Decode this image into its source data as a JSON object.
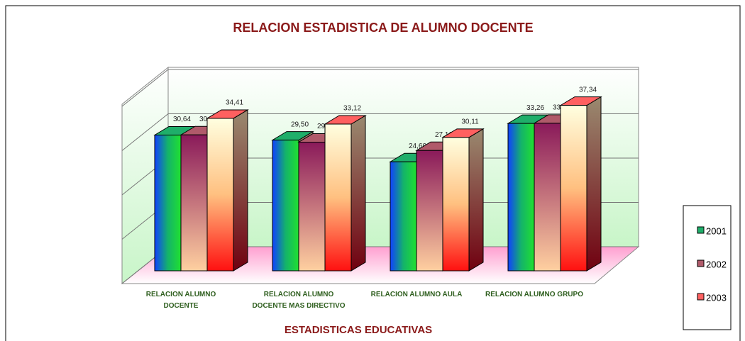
{
  "chart_data": {
    "type": "bar3d",
    "title": "RELACION ESTADISTICA DE ALUMNO DOCENTE",
    "x_label": "ESTADISTICAS EDUCATIVAS",
    "categories": [
      "RELACION ALUMNO DOCENTE",
      "RELACION ALUMNO DOCENTE MAS DIRECTIVO",
      "RELACION ALUMNO AULA",
      "RELACION ALUMNO GRUPO"
    ],
    "series": [
      {
        "name": "2001",
        "color": "#1fae6a",
        "values": [
          30.64,
          29.5,
          24.6,
          33.26
        ],
        "value_labels": [
          "30,64",
          "29,50",
          "24,60",
          "33,26"
        ]
      },
      {
        "name": "2002",
        "color": "#b05a6a",
        "values": [
          30.68,
          29.05,
          27.16,
          33.3
        ],
        "value_labels": [
          "30,68",
          "29,05",
          "27,16",
          "33,30"
        ]
      },
      {
        "name": "2003",
        "color": "#ff6060",
        "values": [
          34.41,
          33.12,
          30.11,
          37.34
        ],
        "value_labels": [
          "34,41",
          "33,12",
          "30,11",
          "37,34"
        ]
      }
    ],
    "ylim": [
      0,
      40
    ],
    "yticks": [
      0,
      10,
      20,
      30,
      40
    ],
    "grid": true,
    "legend": "right"
  }
}
